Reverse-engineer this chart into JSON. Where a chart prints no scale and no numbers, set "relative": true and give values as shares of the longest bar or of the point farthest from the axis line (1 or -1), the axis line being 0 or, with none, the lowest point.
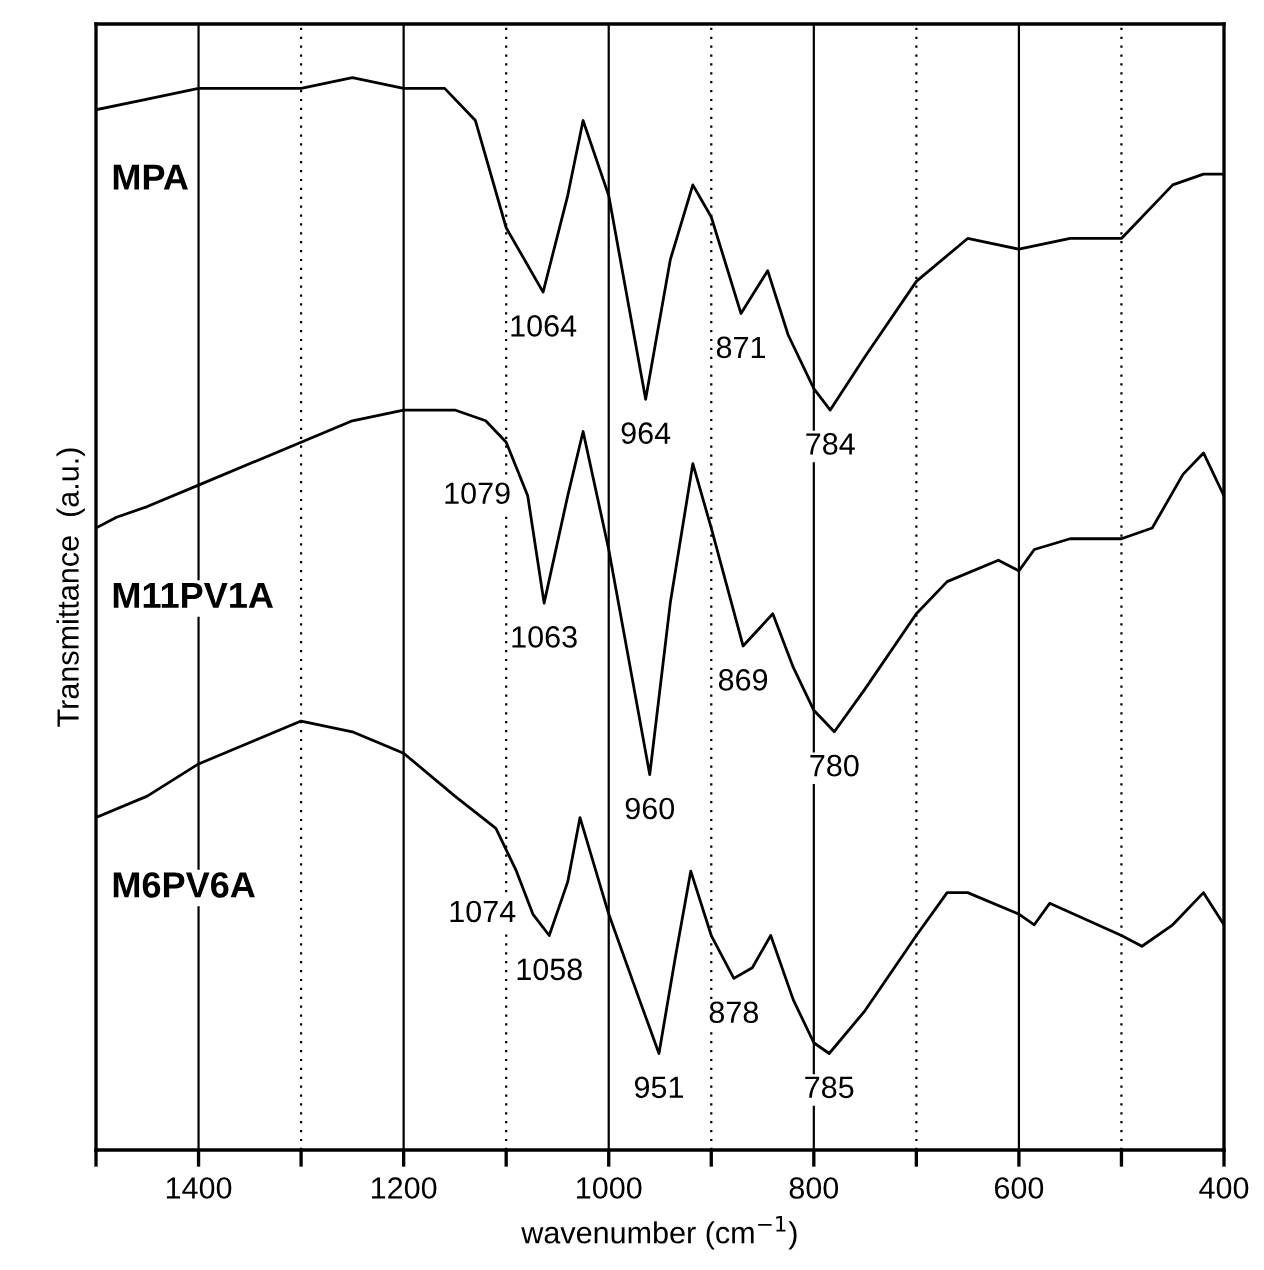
{
  "chart_data": {
    "type": "line",
    "relative": true,
    "xlabel": "wavenumber (cm$^{−1}$)",
    "ylabel": "Transmittance  (a.u.)",
    "xlim": [
      1500,
      400
    ],
    "xticks": [
      {
        "value": 1500,
        "label": null
      },
      1400,
      {
        "value": 1300,
        "label": null
      },
      1200,
      {
        "value": 1100,
        "label": null
      },
      1000,
      {
        "value": 900,
        "label": null
      },
      800,
      {
        "value": 700,
        "label": null
      },
      600,
      {
        "value": 500,
        "label": null
      },
      400
    ],
    "grid": "x",
    "legend": false,
    "marker": "none",
    "line_style": "solid",
    "series": [
      {
        "name": "MPA",
        "color": "#000000",
        "x": [
          1500,
          1450,
          1400,
          1300,
          1250,
          1200,
          1160,
          1130,
          1100,
          1064,
          1040,
          1025,
          1000,
          964,
          940,
          918,
          900,
          871,
          858,
          845,
          825,
          800,
          784,
          750,
          700,
          650,
          600,
          550,
          500,
          450,
          420,
          400
        ],
        "values": [
          0.97,
          0.98,
          0.99,
          0.99,
          1.0,
          0.99,
          0.99,
          0.96,
          0.86,
          0.8,
          0.89,
          0.96,
          0.89,
          0.7,
          0.83,
          0.9,
          0.87,
          0.78,
          0.8,
          0.82,
          0.76,
          0.71,
          0.69,
          0.74,
          0.81,
          0.85,
          0.84,
          0.85,
          0.85,
          0.9,
          0.91,
          0.91
        ]
      },
      {
        "name": "M11PV1A",
        "color": "#000000",
        "x": [
          1500,
          1480,
          1450,
          1400,
          1300,
          1250,
          1200,
          1150,
          1120,
          1100,
          1079,
          1063,
          1040,
          1025,
          1000,
          960,
          940,
          918,
          900,
          869,
          840,
          820,
          800,
          780,
          750,
          700,
          670,
          620,
          600,
          585,
          550,
          520,
          500,
          470,
          440,
          420,
          400
        ],
        "values": [
          0.58,
          0.59,
          0.6,
          0.62,
          0.66,
          0.68,
          0.69,
          0.69,
          0.68,
          0.66,
          0.61,
          0.51,
          0.61,
          0.67,
          0.56,
          0.35,
          0.51,
          0.64,
          0.58,
          0.47,
          0.5,
          0.45,
          0.41,
          0.39,
          0.43,
          0.5,
          0.53,
          0.55,
          0.54,
          0.56,
          0.57,
          0.57,
          0.57,
          0.58,
          0.63,
          0.65,
          0.61
        ]
      },
      {
        "name": "M6PV6A",
        "color": "#000000",
        "x": [
          1500,
          1450,
          1400,
          1350,
          1300,
          1250,
          1200,
          1150,
          1110,
          1090,
          1074,
          1058,
          1040,
          1028,
          1000,
          970,
          951,
          935,
          920,
          900,
          878,
          860,
          842,
          820,
          800,
          785,
          750,
          700,
          670,
          650,
          600,
          585,
          570,
          500,
          480,
          450,
          420,
          400
        ],
        "values": [
          0.31,
          0.33,
          0.36,
          0.38,
          0.4,
          0.39,
          0.37,
          0.33,
          0.3,
          0.26,
          0.22,
          0.2,
          0.25,
          0.31,
          0.22,
          0.14,
          0.09,
          0.18,
          0.26,
          0.2,
          0.16,
          0.17,
          0.2,
          0.14,
          0.1,
          0.09,
          0.13,
          0.2,
          0.24,
          0.24,
          0.22,
          0.21,
          0.23,
          0.2,
          0.19,
          0.21,
          0.24,
          0.21
        ]
      }
    ],
    "annotations": [
      {
        "text": "1064",
        "x": 1064,
        "y": 0.8
      },
      {
        "text": "964",
        "x": 964,
        "y": 0.7
      },
      {
        "text": "871",
        "x": 871,
        "y": 0.78
      },
      {
        "text": "784",
        "x": 784,
        "y": 0.69
      },
      {
        "text": "1079",
        "x": 1079,
        "y": 0.61
      },
      {
        "text": "1063",
        "x": 1063,
        "y": 0.51
      },
      {
        "text": "960",
        "x": 960,
        "y": 0.35
      },
      {
        "text": "869",
        "x": 869,
        "y": 0.47
      },
      {
        "text": "780",
        "x": 780,
        "y": 0.39
      },
      {
        "text": "1074",
        "x": 1074,
        "y": 0.22
      },
      {
        "text": "1058",
        "x": 1058,
        "y": 0.2
      },
      {
        "text": "951",
        "x": 951,
        "y": 0.09
      },
      {
        "text": "878",
        "x": 878,
        "y": 0.16
      },
      {
        "text": "785",
        "x": 785,
        "y": 0.09
      }
    ]
  }
}
